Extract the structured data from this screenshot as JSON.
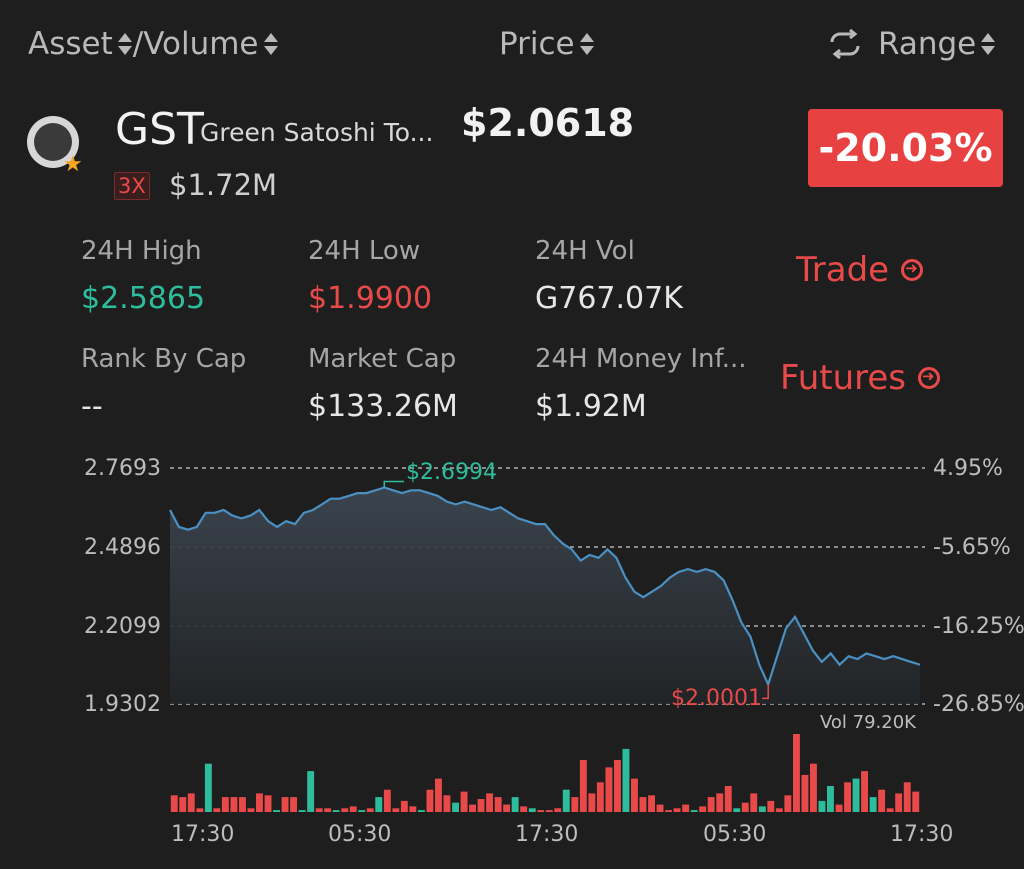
{
  "header": {
    "asset_volume": "Asset /Volume",
    "asset": "Asset",
    "volume": "/Volume",
    "price": "Price",
    "range": "Range"
  },
  "coin": {
    "symbol": "GST",
    "name": "Green Satoshi To...",
    "price": "$2.0618",
    "leverage": "3X",
    "small_value": "$1.72M",
    "change": "-20.03%"
  },
  "stats": {
    "high_label": "24H High",
    "high_value": "$2.5865",
    "low_label": "24H Low",
    "low_value": "$1.9900",
    "vol_label": "24H Vol",
    "vol_value": "G767.07K",
    "rank_label": "Rank By Cap",
    "rank_value": "--",
    "mcap_label": "Market Cap",
    "mcap_value": "$133.26M",
    "inflow_label": "24H Money Inf...",
    "inflow_value": "$1.92M"
  },
  "actions": {
    "trade": "Trade",
    "futures": "Futures"
  },
  "colors": {
    "up": "#2ebd9c",
    "down": "#e84a4a",
    "line": "#4a90c2",
    "background": "#1e1e1e"
  },
  "chart_data": {
    "type": "line",
    "y_ticks": [
      "2.7693",
      "2.4896",
      "2.2099",
      "1.9302"
    ],
    "y_percent_ticks": [
      "4.95%",
      "-5.65%",
      "-16.25%",
      "-26.85%"
    ],
    "ylim": [
      1.9302,
      2.7693
    ],
    "x_ticks": [
      "17:30",
      "05:30",
      "17:30",
      "05:30",
      "17:30"
    ],
    "high_label": "$2.6994",
    "low_label": "$2.0001",
    "volume_label": "Vol 79.20K",
    "prices": [
      2.62,
      2.56,
      2.55,
      2.56,
      2.61,
      2.61,
      2.62,
      2.6,
      2.59,
      2.6,
      2.62,
      2.58,
      2.56,
      2.58,
      2.57,
      2.61,
      2.62,
      2.64,
      2.66,
      2.66,
      2.67,
      2.68,
      2.68,
      2.69,
      2.7,
      2.69,
      2.68,
      2.69,
      2.69,
      2.68,
      2.67,
      2.65,
      2.64,
      2.65,
      2.64,
      2.63,
      2.62,
      2.63,
      2.61,
      2.59,
      2.58,
      2.57,
      2.57,
      2.53,
      2.5,
      2.48,
      2.44,
      2.46,
      2.45,
      2.48,
      2.45,
      2.38,
      2.33,
      2.31,
      2.33,
      2.35,
      2.38,
      2.4,
      2.41,
      2.4,
      2.41,
      2.4,
      2.37,
      2.3,
      2.22,
      2.17,
      2.07,
      2.0,
      2.1,
      2.2,
      2.24,
      2.18,
      2.12,
      2.08,
      2.11,
      2.07,
      2.1,
      2.09,
      2.11,
      2.1,
      2.09,
      2.1,
      2.09,
      2.08,
      2.07
    ],
    "volume": {
      "values": [
        9,
        8,
        10,
        2,
        26,
        2,
        8,
        8,
        8,
        2,
        10,
        9,
        1,
        8,
        8,
        1,
        22,
        2,
        2,
        1,
        2,
        3,
        1,
        2,
        8,
        12,
        2,
        6,
        3,
        1,
        12,
        18,
        9,
        5,
        11,
        4,
        7,
        10,
        8,
        4,
        8,
        3,
        2,
        1,
        1,
        2,
        12,
        8,
        28,
        10,
        16,
        24,
        28,
        34,
        18,
        8,
        9,
        4,
        1,
        2,
        4,
        1,
        3,
        8,
        10,
        14,
        2,
        5,
        10,
        3,
        6,
        2,
        9,
        42,
        20,
        26,
        6,
        14,
        4,
        16,
        18,
        22,
        8,
        12,
        2,
        10,
        16,
        11
      ],
      "up": [
        false,
        false,
        false,
        false,
        true,
        false,
        false,
        false,
        false,
        false,
        false,
        false,
        true,
        false,
        false,
        true,
        true,
        false,
        false,
        true,
        false,
        false,
        true,
        false,
        true,
        false,
        false,
        false,
        false,
        true,
        false,
        false,
        false,
        true,
        false,
        false,
        false,
        false,
        false,
        false,
        true,
        false,
        true,
        false,
        false,
        false,
        true,
        false,
        false,
        false,
        false,
        false,
        false,
        true,
        false,
        false,
        false,
        false,
        false,
        false,
        false,
        true,
        false,
        false,
        false,
        false,
        true,
        false,
        false,
        true,
        false,
        false,
        false,
        false,
        false,
        false,
        true,
        true,
        false,
        false,
        true,
        false,
        true,
        false,
        false,
        false,
        false,
        false
      ]
    }
  }
}
